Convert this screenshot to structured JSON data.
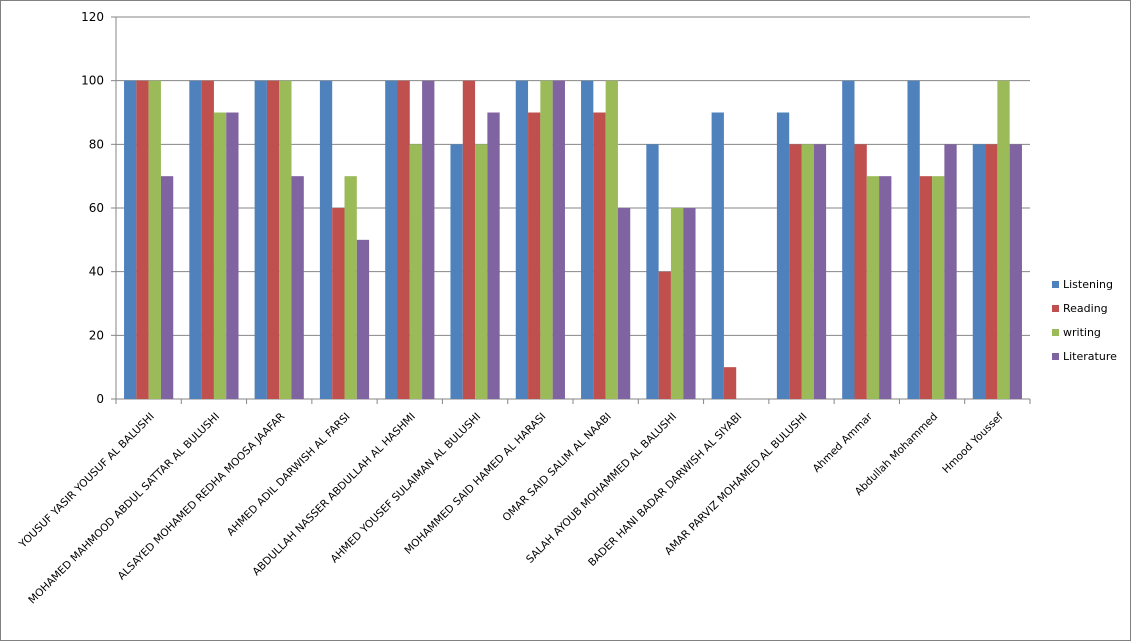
{
  "chart_data": {
    "type": "bar",
    "categories": [
      "YOUSUF YASIR YOUSUF AL BALUSHI",
      "MOHAMED MAHMOOD ABDUL SATTAR  AL BULUSHI",
      "ALSAYED MOHAMED  REDHA MOOSA JAAFAR",
      "AHMED ADIL DARWISH  AL FARSI",
      "ABDULLAH NASSER ABDULLAH AL HASHMI",
      "AHMED YOUSEF SULAIMAN AL BULUSHI",
      "MOHAMMED SAID HAMED AL HARASI",
      "OMAR SAID  SALIM AL NAABI",
      "SALAH AYOUB MOHAMMED  AL BALUSHI",
      "BADER HANI BADAR DARWISH  AL SIYABI",
      "AMAR PARVIZ MOHAMED AL BULUSHI",
      "Ahmed Ammar",
      "Abdullah Mohammed",
      "Hmood Youssef"
    ],
    "series": [
      {
        "name": "Listening",
        "color": "#4F81BD",
        "values": [
          100,
          100,
          100,
          100,
          100,
          80,
          100,
          100,
          80,
          90,
          90,
          100,
          100,
          80
        ]
      },
      {
        "name": "Reading",
        "color": "#C0504D",
        "values": [
          100,
          100,
          100,
          60,
          100,
          100,
          90,
          90,
          40,
          10,
          80,
          80,
          70,
          80
        ]
      },
      {
        "name": "writing",
        "color": "#9BBB59",
        "values": [
          100,
          90,
          100,
          70,
          80,
          80,
          100,
          100,
          60,
          null,
          80,
          70,
          70,
          100
        ]
      },
      {
        "name": "Literature",
        "color": "#8064A2",
        "values": [
          70,
          90,
          70,
          50,
          100,
          90,
          100,
          60,
          60,
          null,
          80,
          70,
          80,
          80
        ]
      }
    ],
    "ylim": [
      0,
      120
    ],
    "yticks": [
      0,
      20,
      40,
      60,
      80,
      100,
      120
    ],
    "grid": true,
    "legend_position": "right",
    "title": "",
    "xlabel": "",
    "ylabel": ""
  }
}
